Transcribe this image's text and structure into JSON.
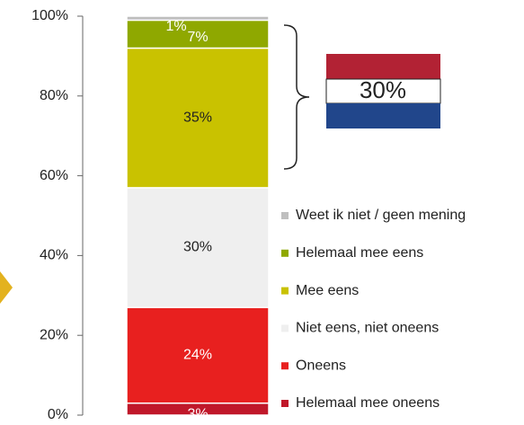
{
  "chart_data": {
    "type": "stacked-bar",
    "series": [
      {
        "name": "Helemaal mee oneens",
        "color": "#c0182a",
        "values": [
          3
        ],
        "value_labels": [
          "3%"
        ]
      },
      {
        "name": "Oneens",
        "color": "#e8201f",
        "values": [
          24
        ],
        "value_labels": [
          "24%"
        ]
      },
      {
        "name": "Niet eens, niet oneens",
        "color": "#efefef",
        "values": [
          30
        ],
        "value_labels": [
          "30%"
        ]
      },
      {
        "name": "Mee eens",
        "color": "#c9c200",
        "values": [
          35
        ],
        "value_labels": [
          "35%"
        ]
      },
      {
        "name": "Helemaal mee eens",
        "color": "#8fa800",
        "values": [
          7
        ],
        "value_labels": [
          "7%"
        ]
      },
      {
        "name": "Weet ik niet / geen mening",
        "color": "#bfbfbf",
        "values": [
          1
        ],
        "value_labels": [
          "1%"
        ]
      }
    ],
    "ylim": [
      0,
      100
    ],
    "yticks": [
      {
        "value": 0,
        "label": "0%"
      },
      {
        "value": 20,
        "label": "20%"
      },
      {
        "value": 40,
        "label": "40%"
      },
      {
        "value": 60,
        "label": "60%"
      },
      {
        "value": 80,
        "label": "80%"
      },
      {
        "value": 100,
        "label": "100%"
      }
    ],
    "annotation": "30%"
  }
}
